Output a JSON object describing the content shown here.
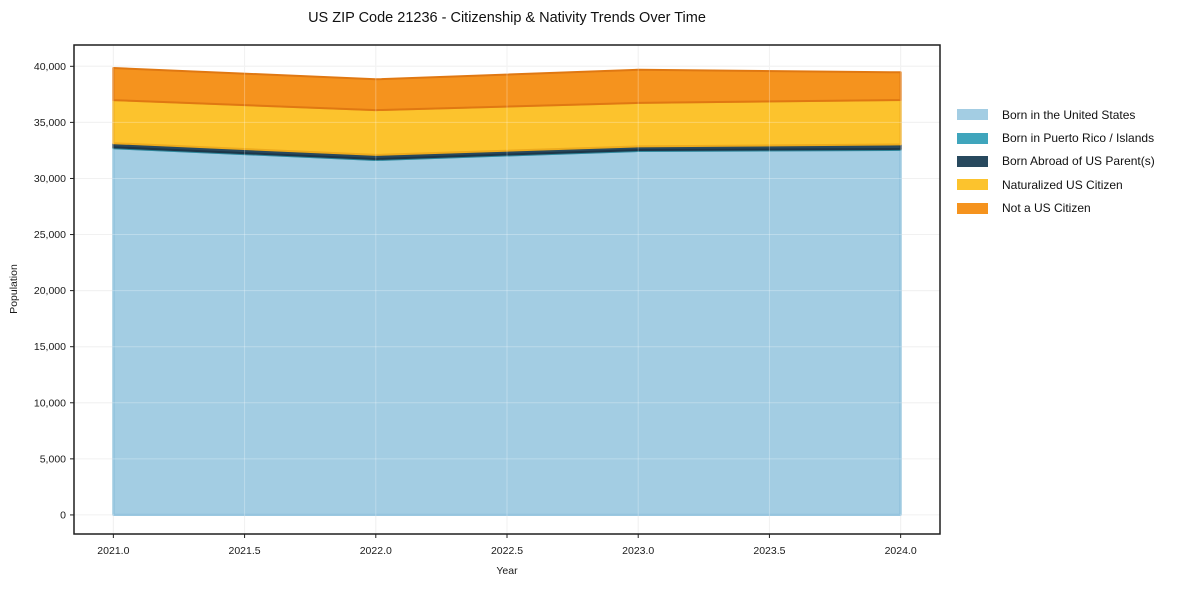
{
  "title": "US ZIP Code 21236 - Citizenship & Nativity Trends Over Time",
  "chart_data": {
    "type": "area",
    "stacked": true,
    "title": "US ZIP Code 21236 - Citizenship & Nativity Trends Over Time",
    "xlabel": "Year",
    "ylabel": "Population",
    "x": [
      2021,
      2022,
      2023,
      2024
    ],
    "series": [
      {
        "name": "Born in the United States",
        "color": "#a3cde3",
        "edge": "#80b9d8",
        "values": [
          32700,
          31650,
          32450,
          32550
        ]
      },
      {
        "name": "Born in Puerto Rico / Islands",
        "color": "#3fa5bc",
        "edge": "#2f879b",
        "values": [
          90,
          90,
          90,
          90
        ]
      },
      {
        "name": "Born Abroad of US Parent(s)",
        "color": "#28495e",
        "edge": "#1c3648",
        "values": [
          350,
          360,
          320,
          400
        ]
      },
      {
        "name": "Naturalized US Citizen",
        "color": "#fcc32d",
        "edge": "#edab1d",
        "values": [
          3850,
          4000,
          3880,
          3960
        ]
      },
      {
        "name": "Not a US Citizen",
        "color": "#f5931e",
        "edge": "#e07812",
        "values": [
          2860,
          2740,
          2950,
          2470
        ]
      }
    ],
    "xlim": [
      2020.85,
      2024.15
    ],
    "ylim": [
      -1700,
      41900
    ],
    "x_ticks": {
      "values": [
        2021,
        2021.5,
        2022,
        2022.5,
        2023,
        2023.5,
        2024
      ],
      "labels": [
        "2021.0",
        "2021.5",
        "2022.0",
        "2022.5",
        "2023.0",
        "2023.5",
        "2024.0"
      ]
    },
    "y_ticks": {
      "values": [
        0,
        5000,
        10000,
        15000,
        20000,
        25000,
        30000,
        35000,
        40000
      ],
      "labels": [
        "0",
        "5,000",
        "10,000",
        "15,000",
        "20,000",
        "25,000",
        "30,000",
        "35,000",
        "40,000"
      ]
    },
    "grid": true,
    "legend_position": "outside-right"
  },
  "colors": {
    "background": "#ffffff",
    "grid": "#ececec",
    "grid_over_area": "rgba(255,255,255,0.28)",
    "spine": "#1f1f1f",
    "tick_text": "#1a1a1a"
  }
}
